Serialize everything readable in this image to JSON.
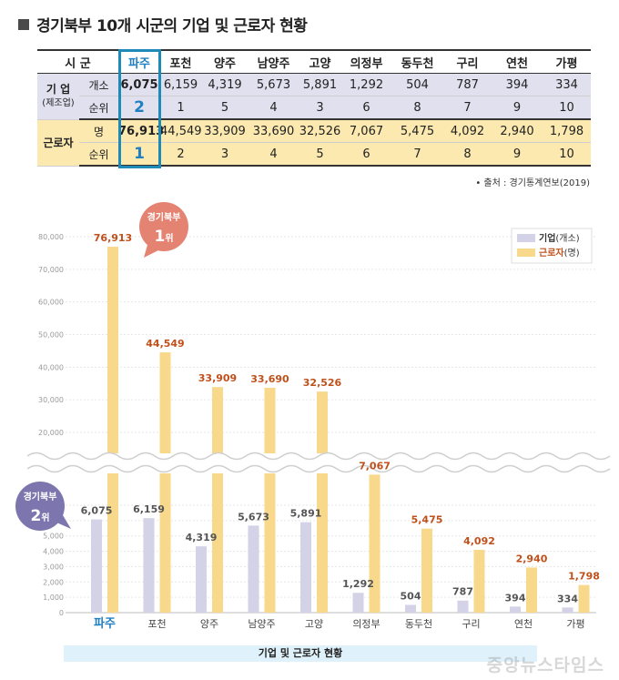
{
  "title": "경기북부 10개 시군의 기업 및 근로자 현황",
  "table": {
    "header": [
      "시 군",
      "파주",
      "포천",
      "양주",
      "남양주",
      "고양",
      "의정부",
      "동두천",
      "구리",
      "연천",
      "가평"
    ],
    "corp_label_1": "기 업",
    "corp_label_2": "(제조업)",
    "corp_count_label": "개소",
    "corp_rank_label": "순위",
    "corp_counts": [
      "6,075",
      "6,159",
      "4,319",
      "5,673",
      "5,891",
      "1,292",
      "504",
      "787",
      "394",
      "334"
    ],
    "corp_ranks": [
      "2",
      "1",
      "5",
      "4",
      "3",
      "6",
      "8",
      "7",
      "9",
      "10"
    ],
    "work_label": "근로자",
    "work_count_label": "명",
    "work_rank_label": "순위",
    "work_counts": [
      "76,913",
      "44,549",
      "33,909",
      "33,690",
      "32,526",
      "7,067",
      "5,475",
      "4,092",
      "2,940",
      "1,798"
    ],
    "work_ranks": [
      "1",
      "2",
      "3",
      "4",
      "5",
      "6",
      "7",
      "8",
      "9",
      "10"
    ]
  },
  "source": "• 출처 : 경기통계연보(2019)",
  "chart_data": {
    "type": "bar",
    "categories": [
      "파주",
      "포천",
      "양주",
      "남양주",
      "고양",
      "의정부",
      "동두천",
      "구리",
      "연천",
      "가평"
    ],
    "series": [
      {
        "name": "기업(개소)",
        "values": [
          6075,
          6159,
          4319,
          5673,
          5891,
          1292,
          504,
          787,
          394,
          334
        ],
        "labels": [
          "6,075",
          "6,159",
          "4,319",
          "5,673",
          "5,891",
          "1,292",
          "504",
          "787",
          "394",
          "334"
        ]
      },
      {
        "name": "근로자(명)",
        "values": [
          76913,
          44549,
          33909,
          33690,
          32526,
          7067,
          5475,
          4092,
          2940,
          1798
        ],
        "labels": [
          "76,913",
          "44,549",
          "33,909",
          "33,690",
          "32,526",
          "7,067",
          "5,475",
          "4,092",
          "2,940",
          "1,798"
        ]
      }
    ],
    "lower_ticks": [
      "1,000",
      "2,000",
      "3,000",
      "4,000",
      "5,000",
      "6,000",
      "7,000"
    ],
    "upper_ticks": [
      "20,000",
      "30,000",
      "40,000",
      "50,000",
      "60,000",
      "70,000",
      "80,000"
    ],
    "zero_tick": "0",
    "axis_break": "7,000 – 20,000",
    "legend": {
      "corp_bold": "기업",
      "corp_rest": "(개소)",
      "work_bold": "근로자",
      "work_rest": "(명)"
    },
    "legend_position": "top-right",
    "badge_work": {
      "line1": "경기북부",
      "rank": "1",
      "unit": "위"
    },
    "badge_corp": {
      "line1": "경기북부",
      "rank": "2",
      "unit": "위"
    },
    "colors": {
      "corp": "#d3d2e6",
      "work": "#f8d98c",
      "work_label": "#c0501b",
      "badge_work": "#e58373",
      "badge_corp": "#7d76ae",
      "highlight": "#1f7fc0"
    }
  },
  "caption": "기업 및 근로자 현황",
  "watermark": "중앙뉴스타임스"
}
